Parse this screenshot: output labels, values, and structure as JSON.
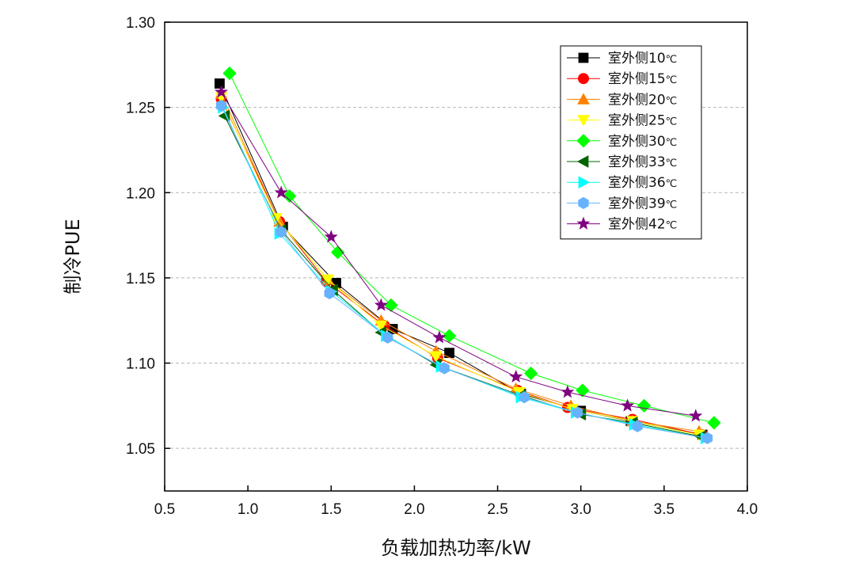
{
  "chart_data": {
    "type": "line",
    "title": "",
    "xlabel": "负载加热功率/kW",
    "ylabel": "制冷PUE",
    "xlim": [
      0.5,
      4.0
    ],
    "ylim": [
      1.025,
      1.3
    ],
    "xticks": [
      "0.5",
      "1.0",
      "1.5",
      "2.0",
      "2.5",
      "3.0",
      "3.5",
      "4.0"
    ],
    "yticks": [
      "1.05",
      "1.10",
      "1.15",
      "1.20",
      "1.25",
      "1.30"
    ],
    "grid": "horizontal-dashed",
    "legend_position": "top-right",
    "series": [
      {
        "name": "室外侧10",
        "unit": "℃",
        "color": "#000000",
        "marker": "square",
        "x": [
          0.83,
          1.21,
          1.53,
          1.87,
          2.21,
          2.64,
          3.0,
          3.3,
          3.73
        ],
        "y": [
          1.264,
          1.18,
          1.147,
          1.12,
          1.106,
          1.082,
          1.072,
          1.066,
          1.058
        ]
      },
      {
        "name": "室外侧15",
        "unit": "℃",
        "color": "#ff0000",
        "marker": "circle",
        "x": [
          0.84,
          1.19,
          1.47,
          1.82,
          2.14,
          2.62,
          2.92,
          3.31,
          3.73
        ],
        "y": [
          1.255,
          1.183,
          1.148,
          1.122,
          1.103,
          1.084,
          1.074,
          1.067,
          1.058
        ]
      },
      {
        "name": "室外侧20",
        "unit": "℃",
        "color": "#ff8000",
        "marker": "triangle-up",
        "x": [
          0.84,
          1.19,
          1.48,
          1.8,
          2.13,
          2.61,
          2.94,
          3.31,
          3.71
        ],
        "y": [
          1.258,
          1.183,
          1.149,
          1.125,
          1.107,
          1.085,
          1.075,
          1.066,
          1.06
        ]
      },
      {
        "name": "室外侧25",
        "unit": "℃",
        "color": "#ffff00",
        "marker": "triangle-down",
        "x": [
          0.84,
          1.17,
          1.48,
          1.8,
          2.13,
          2.63,
          2.95,
          3.31,
          3.71
        ],
        "y": [
          1.256,
          1.185,
          1.149,
          1.122,
          1.104,
          1.083,
          1.073,
          1.066,
          1.058
        ]
      },
      {
        "name": "室外侧30",
        "unit": "℃",
        "color": "#00ff00",
        "marker": "diamond",
        "x": [
          0.89,
          1.25,
          1.54,
          1.86,
          2.21,
          2.7,
          3.01,
          3.38,
          3.8
        ],
        "y": [
          1.27,
          1.198,
          1.165,
          1.134,
          1.116,
          1.094,
          1.084,
          1.075,
          1.065
        ]
      },
      {
        "name": "室外侧33",
        "unit": "℃",
        "color": "#006400",
        "marker": "triangle-left",
        "x": [
          0.86,
          1.2,
          1.51,
          1.8,
          2.13,
          2.64,
          3.0,
          3.31,
          3.72
        ],
        "y": [
          1.245,
          1.178,
          1.143,
          1.118,
          1.099,
          1.081,
          1.07,
          1.065,
          1.057
        ]
      },
      {
        "name": "室外侧36",
        "unit": "℃",
        "color": "#00ffff",
        "marker": "triangle-right",
        "x": [
          0.85,
          1.19,
          1.5,
          1.83,
          2.16,
          2.64,
          2.97,
          3.32,
          3.75
        ],
        "y": [
          1.25,
          1.176,
          1.142,
          1.116,
          1.098,
          1.08,
          1.071,
          1.064,
          1.056
        ]
      },
      {
        "name": "室外侧39",
        "unit": "℃",
        "color": "#66b2ff",
        "marker": "hexagon",
        "x": [
          0.84,
          1.2,
          1.49,
          1.84,
          2.18,
          2.66,
          2.98,
          3.34,
          3.76
        ],
        "y": [
          1.251,
          1.177,
          1.141,
          1.115,
          1.097,
          1.08,
          1.071,
          1.063,
          1.056
        ]
      },
      {
        "name": "室外侧42",
        "unit": "℃",
        "color": "#800080",
        "marker": "star",
        "x": [
          0.84,
          1.2,
          1.5,
          1.8,
          2.15,
          2.61,
          2.92,
          3.28,
          3.69
        ],
        "y": [
          1.259,
          1.2,
          1.174,
          1.134,
          1.115,
          1.092,
          1.083,
          1.075,
          1.069
        ]
      }
    ]
  }
}
